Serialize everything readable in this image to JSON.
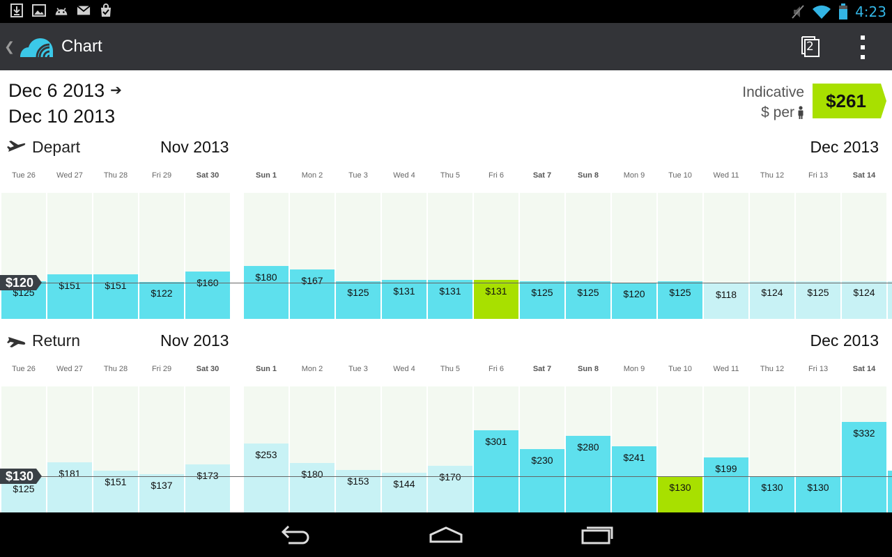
{
  "status_bar": {
    "time": "4:23",
    "left_icons": [
      "download-icon",
      "image-icon",
      "android-icon",
      "mail-icon",
      "shopping-bag-icon"
    ],
    "right_icons": [
      "muted-icon",
      "wifi-icon",
      "battery-icon"
    ]
  },
  "action_bar": {
    "title": "Chart",
    "tab_count": "2",
    "colors": {
      "background": "#333438",
      "logo": "#3bc8e8"
    }
  },
  "trip": {
    "depart_date": "Dec 6 2013",
    "return_date": "Dec 10 2013",
    "indicative_label": "Indicative",
    "per_person_label": "$ per",
    "price": "$261",
    "price_color": "#a8e000"
  },
  "colors": {
    "bar_strong": "#5ee0ed",
    "bar_light": "#c8f2f5",
    "bar_selected": "#a8e000",
    "column_bg": "#f3f9f1",
    "marker": "#3a4046"
  },
  "depart": {
    "title": "Depart",
    "month_left": "Nov 2013",
    "month_right": "Dec 2013",
    "marker_label": "$120",
    "marker_value": 120,
    "days": [
      {
        "label": "Tue 26",
        "bold": false,
        "price": "$125",
        "value": 125,
        "style": "strong"
      },
      {
        "label": "Wed 27",
        "bold": false,
        "price": "$151",
        "value": 151,
        "style": "strong"
      },
      {
        "label": "Thu 28",
        "bold": false,
        "price": "$151",
        "value": 151,
        "style": "strong"
      },
      {
        "label": "Fri 29",
        "bold": false,
        "price": "$122",
        "value": 122,
        "style": "strong"
      },
      {
        "label": "Sat 30",
        "bold": true,
        "price": "$160",
        "value": 160,
        "style": "strong"
      },
      {
        "label": "Sun 1",
        "bold": true,
        "price": "$180",
        "value": 180,
        "style": "strong"
      },
      {
        "label": "Mon 2",
        "bold": false,
        "price": "$167",
        "value": 167,
        "style": "strong"
      },
      {
        "label": "Tue 3",
        "bold": false,
        "price": "$125",
        "value": 125,
        "style": "strong"
      },
      {
        "label": "Wed 4",
        "bold": false,
        "price": "$131",
        "value": 131,
        "style": "strong"
      },
      {
        "label": "Thu 5",
        "bold": false,
        "price": "$131",
        "value": 131,
        "style": "strong"
      },
      {
        "label": "Fri 6",
        "bold": false,
        "price": "$131",
        "value": 131,
        "style": "selected"
      },
      {
        "label": "Sat 7",
        "bold": true,
        "price": "$125",
        "value": 125,
        "style": "strong"
      },
      {
        "label": "Sun 8",
        "bold": true,
        "price": "$125",
        "value": 125,
        "style": "strong"
      },
      {
        "label": "Mon 9",
        "bold": false,
        "price": "$120",
        "value": 120,
        "style": "strong"
      },
      {
        "label": "Tue 10",
        "bold": false,
        "price": "$125",
        "value": 125,
        "style": "strong"
      },
      {
        "label": "Wed 11",
        "bold": false,
        "price": "$118",
        "value": 118,
        "style": "light"
      },
      {
        "label": "Thu 12",
        "bold": false,
        "price": "$124",
        "value": 124,
        "style": "light"
      },
      {
        "label": "Fri 13",
        "bold": false,
        "price": "$125",
        "value": 125,
        "style": "light"
      },
      {
        "label": "Sat 14",
        "bold": true,
        "price": "$124",
        "value": 124,
        "style": "light"
      }
    ]
  },
  "return": {
    "title": "Return",
    "month_left": "Nov 2013",
    "month_right": "Dec 2013",
    "marker_label": "$130",
    "marker_value": 130,
    "days": [
      {
        "label": "Tue 26",
        "bold": false,
        "price": "$125",
        "value": 125,
        "style": "light"
      },
      {
        "label": "Wed 27",
        "bold": false,
        "price": "$181",
        "value": 181,
        "style": "light"
      },
      {
        "label": "Thu 28",
        "bold": false,
        "price": "$151",
        "value": 151,
        "style": "light"
      },
      {
        "label": "Fri 29",
        "bold": false,
        "price": "$137",
        "value": 137,
        "style": "light"
      },
      {
        "label": "Sat 30",
        "bold": true,
        "price": "$173",
        "value": 173,
        "style": "light"
      },
      {
        "label": "Sun 1",
        "bold": true,
        "price": "$253",
        "value": 253,
        "style": "light"
      },
      {
        "label": "Mon 2",
        "bold": false,
        "price": "$180",
        "value": 180,
        "style": "light"
      },
      {
        "label": "Tue 3",
        "bold": false,
        "price": "$153",
        "value": 153,
        "style": "light"
      },
      {
        "label": "Wed 4",
        "bold": false,
        "price": "$144",
        "value": 144,
        "style": "light"
      },
      {
        "label": "Thu 5",
        "bold": false,
        "price": "$170",
        "value": 170,
        "style": "light"
      },
      {
        "label": "Fri 6",
        "bold": false,
        "price": "$301",
        "value": 301,
        "style": "strong"
      },
      {
        "label": "Sat 7",
        "bold": true,
        "price": "$230",
        "value": 230,
        "style": "strong"
      },
      {
        "label": "Sun 8",
        "bold": true,
        "price": "$280",
        "value": 280,
        "style": "strong"
      },
      {
        "label": "Mon 9",
        "bold": false,
        "price": "$241",
        "value": 241,
        "style": "strong"
      },
      {
        "label": "Tue 10",
        "bold": false,
        "price": "$130",
        "value": 130,
        "style": "selected"
      },
      {
        "label": "Wed 11",
        "bold": false,
        "price": "$199",
        "value": 199,
        "style": "strong"
      },
      {
        "label": "Thu 12",
        "bold": false,
        "price": "$130",
        "value": 130,
        "style": "strong"
      },
      {
        "label": "Fri 13",
        "bold": false,
        "price": "$130",
        "value": 130,
        "style": "strong"
      },
      {
        "label": "Sat 14",
        "bold": true,
        "price": "$332",
        "value": 332,
        "style": "strong"
      }
    ]
  },
  "nav_bar": {
    "buttons": [
      "back-icon",
      "home-icon",
      "recent-apps-icon"
    ]
  }
}
